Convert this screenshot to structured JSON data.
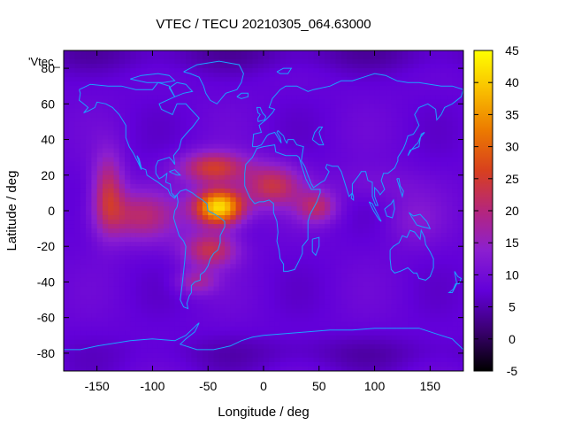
{
  "chart_data": {
    "type": "heatmap",
    "title": "VTEC / TECU 20210305_064.63000",
    "xlabel": "Longitude / deg",
    "ylabel": "Latitude / deg",
    "legend_label": "'Vtec_",
    "xlim": [
      -180,
      180
    ],
    "ylim": [
      -90,
      90
    ],
    "x_ticks": [
      -150,
      -100,
      -50,
      0,
      50,
      100,
      150
    ],
    "y_ticks": [
      -80,
      -60,
      -40,
      -20,
      0,
      20,
      40,
      60,
      80
    ],
    "colorbar": {
      "range": [
        -5,
        45
      ],
      "ticks": [
        -5,
        0,
        5,
        10,
        15,
        20,
        25,
        30,
        35,
        40,
        45
      ],
      "palette": [
        "#000000",
        "#3a006f",
        "#6200d9",
        "#8b1fd0",
        "#b5267c",
        "#d8401e",
        "#ec7a00",
        "#f9be00",
        "#ffff00"
      ]
    },
    "background_value": 8,
    "features": [
      {
        "name": "equatorial anomaly peak",
        "lon": -40,
        "lat": 2,
        "value": 43
      },
      {
        "name": "northern crest",
        "lon": -45,
        "lat": 25,
        "value": 26
      },
      {
        "name": "southern crest",
        "lon": -45,
        "lat": -22,
        "value": 24
      },
      {
        "name": "eastern pacific arm",
        "lon": -140,
        "lat": 10,
        "value": 23
      },
      {
        "name": "pacific arm",
        "lon": -115,
        "lat": -5,
        "value": 20
      },
      {
        "name": "africa arm",
        "lon": 5,
        "lat": 15,
        "value": 25
      },
      {
        "name": "indian ocean arm",
        "lon": 50,
        "lat": 2,
        "value": 20
      },
      {
        "name": "south atlantic",
        "lon": -55,
        "lat": -40,
        "value": 18
      },
      {
        "name": "asia tail",
        "lon": 130,
        "lat": -5,
        "value": 13
      },
      {
        "name": "polar low north",
        "lon": 0,
        "lat": 82,
        "value": 5
      },
      {
        "name": "polar low south",
        "lon": 0,
        "lat": -80,
        "value": 7
      }
    ]
  },
  "colors": {
    "coastline": "#1aa3ff"
  }
}
